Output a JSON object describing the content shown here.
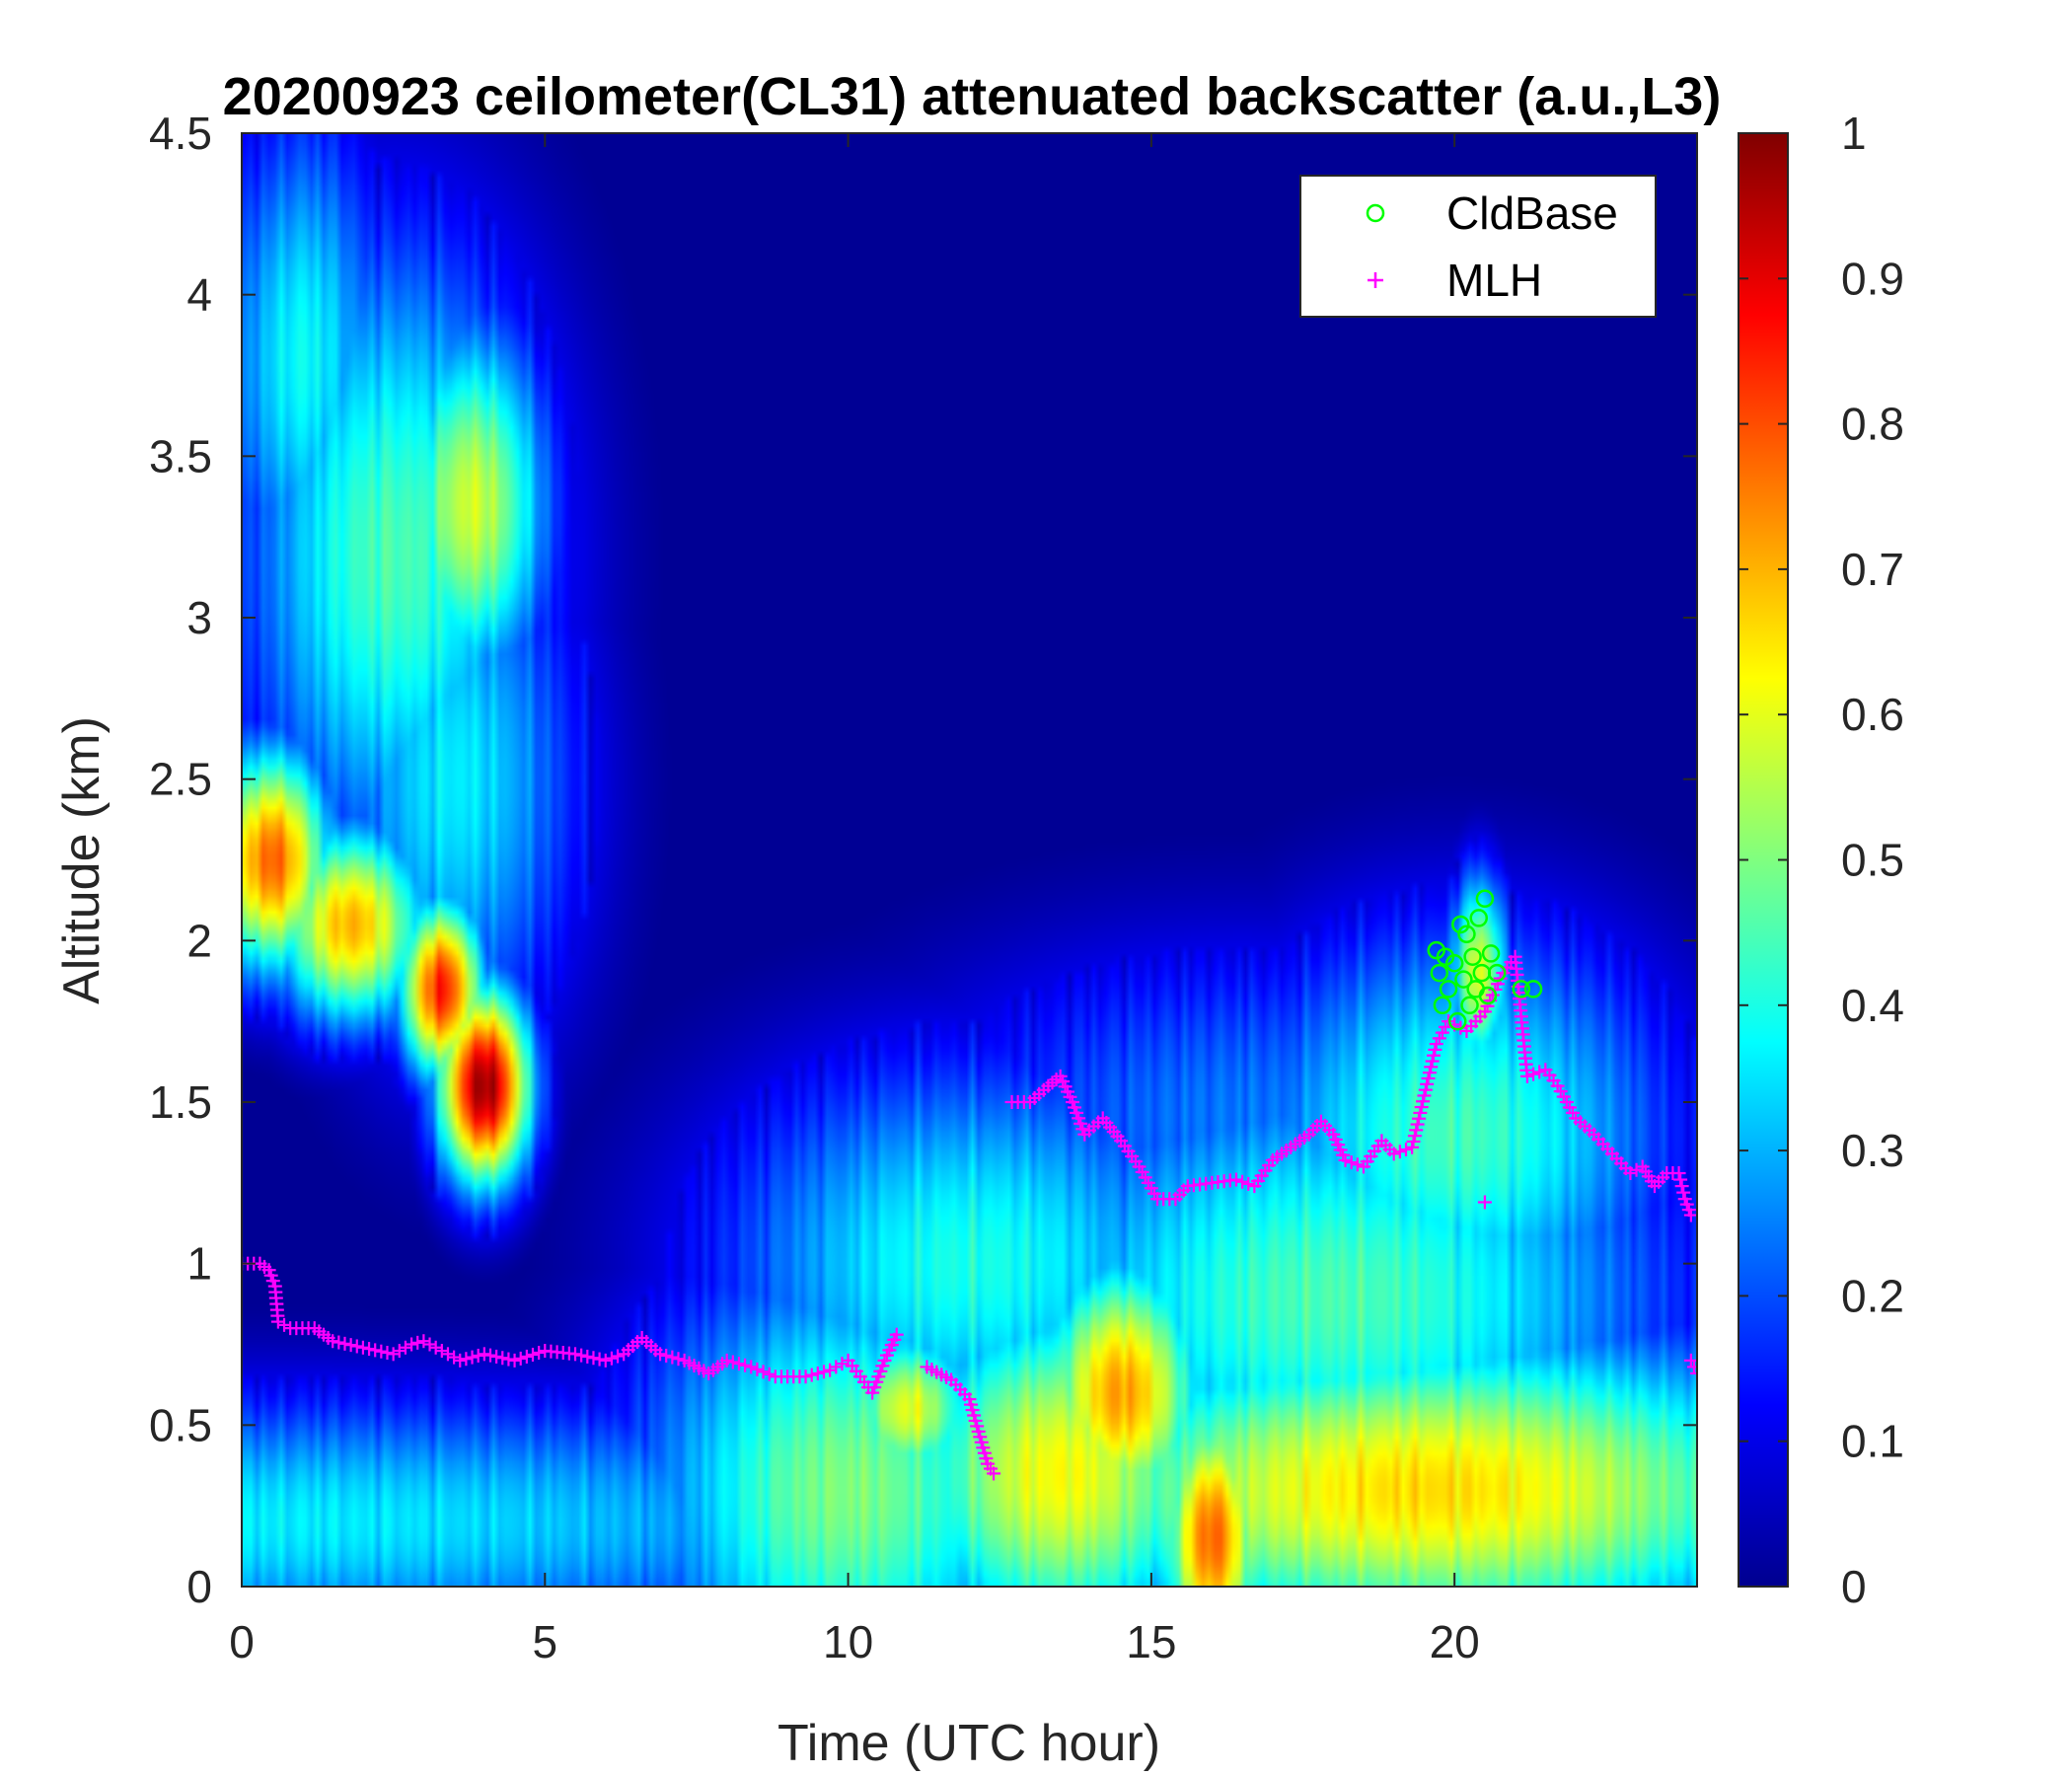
{
  "chart_data": {
    "type": "heatmap",
    "title": "20200923 ceilometer(CL31) attenuated backscatter (a.u.,L3)",
    "xlabel": "Time (UTC hour)",
    "ylabel": "Altitude (km)",
    "xlim": [
      0,
      24
    ],
    "ylim": [
      0,
      4.5
    ],
    "xticks": [
      "0",
      "5",
      "10",
      "15",
      "20"
    ],
    "xtick_values": [
      0,
      5,
      10,
      15,
      20
    ],
    "yticks": [
      "0",
      "0.5",
      "1",
      "1.5",
      "2",
      "2.5",
      "3",
      "3.5",
      "4",
      "4.5"
    ],
    "ytick_values": [
      0,
      0.5,
      1,
      1.5,
      2,
      2.5,
      3,
      3.5,
      4,
      4.5
    ],
    "colorbar": {
      "colormap": "jet",
      "range": [
        0,
        1
      ],
      "ticks": [
        "0",
        "0.1",
        "0.2",
        "0.3",
        "0.4",
        "0.5",
        "0.6",
        "0.7",
        "0.8",
        "0.9",
        "1"
      ],
      "tick_values": [
        0,
        0.1,
        0.2,
        0.3,
        0.4,
        0.5,
        0.6,
        0.7,
        0.8,
        0.9,
        1
      ]
    },
    "legend_position": "top-right",
    "series": [
      {
        "name": "CldBase",
        "marker": "circle",
        "color": "#00ff00",
        "points": [
          [
            19.7,
            1.97
          ],
          [
            19.75,
            1.9
          ],
          [
            19.8,
            1.8
          ],
          [
            19.85,
            1.95
          ],
          [
            19.9,
            1.85
          ],
          [
            20.0,
            1.93
          ],
          [
            20.05,
            1.75
          ],
          [
            20.1,
            2.05
          ],
          [
            20.15,
            1.88
          ],
          [
            20.2,
            2.02
          ],
          [
            20.25,
            1.8
          ],
          [
            20.3,
            1.95
          ],
          [
            20.35,
            1.85
          ],
          [
            20.4,
            2.07
          ],
          [
            20.45,
            1.9
          ],
          [
            20.5,
            2.13
          ],
          [
            20.55,
            1.83
          ],
          [
            20.6,
            1.96
          ],
          [
            20.7,
            1.9
          ],
          [
            21.1,
            1.85
          ],
          [
            21.3,
            1.85
          ]
        ]
      },
      {
        "name": "MLH",
        "marker": "plus",
        "color": "#ff00ff",
        "segments": [
          [
            [
              0,
              1.0
            ],
            [
              0.3,
              1.0
            ],
            [
              0.45,
              0.98
            ],
            [
              0.55,
              0.93
            ],
            [
              0.6,
              0.82
            ],
            [
              0.8,
              0.8
            ],
            [
              1.2,
              0.8
            ],
            [
              1.5,
              0.76
            ],
            [
              2.0,
              0.74
            ],
            [
              2.5,
              0.72
            ],
            [
              2.8,
              0.75
            ],
            [
              3.0,
              0.76
            ],
            [
              3.3,
              0.73
            ],
            [
              3.6,
              0.7
            ],
            [
              4.0,
              0.72
            ],
            [
              4.5,
              0.7
            ],
            [
              5.0,
              0.73
            ],
            [
              5.5,
              0.72
            ],
            [
              6.0,
              0.7
            ],
            [
              6.3,
              0.72
            ],
            [
              6.6,
              0.77
            ],
            [
              6.9,
              0.72
            ],
            [
              7.3,
              0.7
            ],
            [
              7.7,
              0.66
            ],
            [
              8.0,
              0.7
            ],
            [
              8.4,
              0.68
            ],
            [
              8.8,
              0.65
            ],
            [
              9.3,
              0.65
            ],
            [
              9.7,
              0.67
            ],
            [
              10.0,
              0.7
            ],
            [
              10.2,
              0.65
            ],
            [
              10.4,
              0.6
            ],
            [
              10.6,
              0.7
            ],
            [
              10.8,
              0.78
            ]
          ],
          [
            [
              11.3,
              0.68
            ],
            [
              11.7,
              0.64
            ],
            [
              12.0,
              0.58
            ],
            [
              12.15,
              0.48
            ],
            [
              12.3,
              0.38
            ],
            [
              12.4,
              0.35
            ]
          ],
          [
            [
              12.7,
              1.5
            ],
            [
              13.0,
              1.5
            ],
            [
              13.3,
              1.55
            ],
            [
              13.5,
              1.58
            ],
            [
              13.7,
              1.5
            ],
            [
              13.9,
              1.4
            ],
            [
              14.2,
              1.45
            ],
            [
              14.5,
              1.38
            ],
            [
              14.8,
              1.3
            ],
            [
              15.1,
              1.2
            ],
            [
              15.4,
              1.2
            ],
            [
              15.6,
              1.24
            ],
            [
              16.0,
              1.25
            ],
            [
              16.4,
              1.26
            ],
            [
              16.7,
              1.24
            ],
            [
              17.0,
              1.32
            ],
            [
              17.3,
              1.36
            ],
            [
              17.6,
              1.4
            ],
            [
              17.8,
              1.44
            ],
            [
              18.0,
              1.4
            ],
            [
              18.2,
              1.32
            ],
            [
              18.5,
              1.3
            ],
            [
              18.8,
              1.38
            ],
            [
              19.0,
              1.34
            ],
            [
              19.3,
              1.36
            ],
            [
              19.5,
              1.52
            ],
            [
              19.7,
              1.68
            ],
            [
              19.9,
              1.75
            ],
            [
              20.2,
              1.72
            ],
            [
              20.5,
              1.78
            ],
            [
              20.8,
              1.9
            ],
            [
              21.0,
              1.95
            ],
            [
              21.2,
              1.58
            ],
            [
              21.5,
              1.6
            ],
            [
              21.7,
              1.55
            ],
            [
              22.0,
              1.45
            ],
            [
              22.3,
              1.4
            ],
            [
              22.6,
              1.34
            ],
            [
              22.9,
              1.28
            ],
            [
              23.1,
              1.3
            ],
            [
              23.3,
              1.24
            ],
            [
              23.5,
              1.28
            ],
            [
              23.7,
              1.28
            ],
            [
              23.8,
              1.2
            ],
            [
              23.9,
              1.15
            ]
          ],
          [
            [
              23.9,
              0.7
            ],
            [
              24.0,
              0.66
            ]
          ]
        ],
        "outliers": [
          [
            20.5,
            1.19
          ]
        ]
      }
    ],
    "heatmap_features": [
      {
        "type": "blob",
        "t": 0.2,
        "z": 0.2,
        "sx": 10,
        "sz": 0.28,
        "v": 0.36
      },
      {
        "type": "blob",
        "t": 10.0,
        "z": 0.3,
        "sx": 2.5,
        "sz": 0.5,
        "v": 0.5
      },
      {
        "type": "blob",
        "t": 11.0,
        "z": 0.55,
        "sx": 0.8,
        "sz": 0.18,
        "v": 0.6
      },
      {
        "type": "blob",
        "t": 13.5,
        "z": 0.35,
        "sx": 2.0,
        "sz": 0.4,
        "v": 0.62
      },
      {
        "type": "blob",
        "t": 14.5,
        "z": 0.6,
        "sx": 1.0,
        "sz": 0.3,
        "v": 0.72
      },
      {
        "type": "blob",
        "t": 16.0,
        "z": 0.15,
        "sx": 0.6,
        "sz": 0.3,
        "v": 0.78
      },
      {
        "type": "blob",
        "t": 19.5,
        "z": 0.3,
        "sx": 5,
        "sz": 0.35,
        "v": 0.66
      },
      {
        "type": "blob",
        "t": 18.0,
        "z": 0.9,
        "sx": 4,
        "sz": 0.5,
        "v": 0.45
      },
      {
        "type": "blob",
        "t": 12.0,
        "z": 1.0,
        "sx": 3,
        "sz": 0.45,
        "v": 0.4
      },
      {
        "type": "blob",
        "t": 20.0,
        "z": 1.4,
        "sx": 2.5,
        "sz": 0.45,
        "v": 0.44
      },
      {
        "type": "blob",
        "t": 16.5,
        "z": 1.45,
        "sx": 4,
        "sz": 0.4,
        "v": 0.24
      },
      {
        "type": "blob",
        "t": 0.5,
        "z": 2.25,
        "sx": 0.7,
        "sz": 0.25,
        "v": 0.78
      },
      {
        "type": "blob",
        "t": 1.8,
        "z": 2.05,
        "sx": 0.9,
        "sz": 0.22,
        "v": 0.7
      },
      {
        "type": "blob",
        "t": 3.3,
        "z": 1.85,
        "sx": 0.5,
        "sz": 0.2,
        "v": 0.85
      },
      {
        "type": "blob",
        "t": 4.0,
        "z": 1.55,
        "sx": 0.55,
        "sz": 0.22,
        "v": 0.98
      },
      {
        "type": "blob",
        "t": 2.5,
        "z": 3.2,
        "sx": 1.8,
        "sz": 0.7,
        "v": 0.45
      },
      {
        "type": "blob",
        "t": 3.8,
        "z": 3.35,
        "sx": 0.9,
        "sz": 0.4,
        "v": 0.58
      },
      {
        "type": "blob",
        "t": 1.0,
        "z": 3.8,
        "sx": 1.0,
        "sz": 0.55,
        "v": 0.38
      },
      {
        "type": "blob",
        "t": 3.5,
        "z": 2.5,
        "sx": 1.5,
        "sz": 0.6,
        "v": 0.36
      },
      {
        "type": "blob",
        "t": 20.4,
        "z": 1.9,
        "sx": 0.35,
        "sz": 0.22,
        "v": 0.6
      }
    ]
  }
}
